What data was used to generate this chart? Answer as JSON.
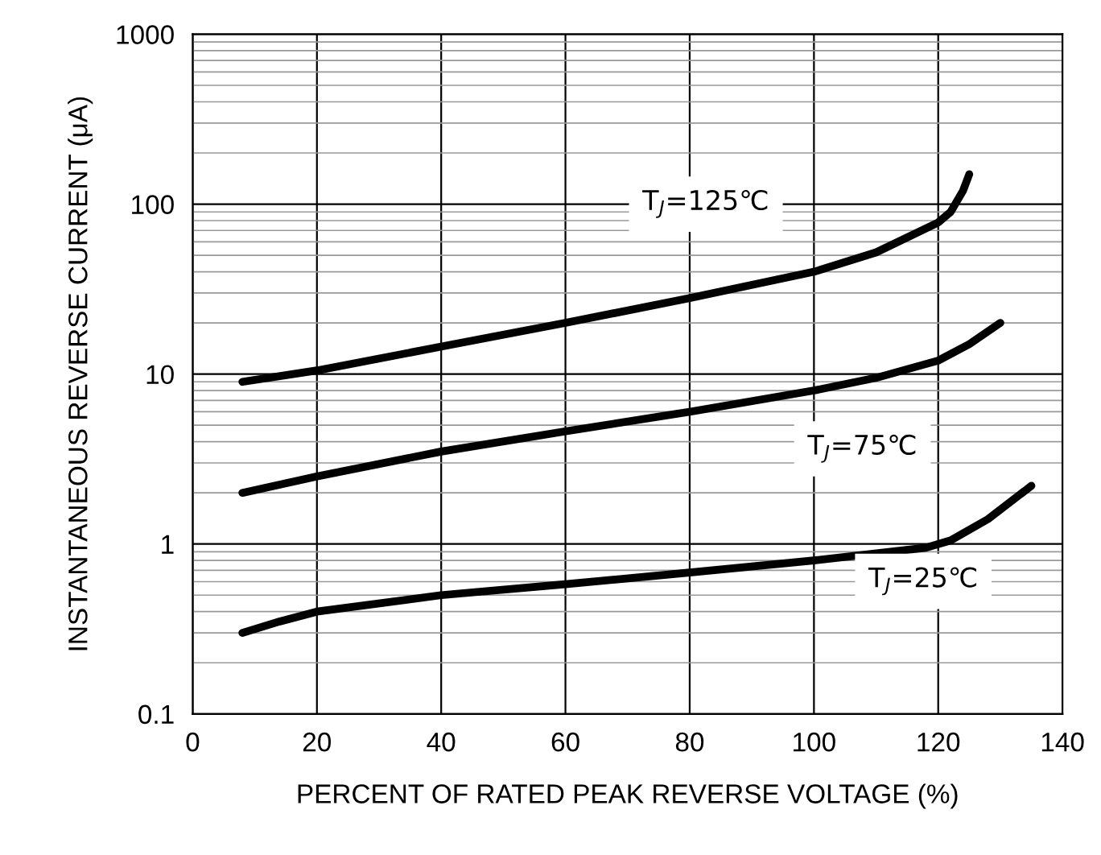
{
  "chart_data": {
    "type": "line",
    "xlabel": "PERCENT OF RATED PEAK REVERSE VOLTAGE (%)",
    "ylabel": "INSTANTANEOUS REVERSE CURRENT (μA)",
    "log": "y",
    "grid": true,
    "marker": "none",
    "line_style": "solid",
    "xlim": [
      0,
      140
    ],
    "xticks": [
      0,
      20,
      40,
      60,
      80,
      100,
      120,
      140
    ],
    "ylim": [
      0.1,
      1000
    ],
    "yticks": [
      0.1,
      1,
      10,
      100,
      1000
    ],
    "series": [
      {
        "name": "T$_{J}$=125℃",
        "color": "#000000",
        "x": [
          8,
          20,
          40,
          60,
          80,
          100,
          110,
          120,
          122,
          124,
          125
        ],
        "values": [
          9,
          10.5,
          14.5,
          20,
          28,
          40,
          52,
          78,
          90,
          120,
          150
        ]
      },
      {
        "name": "T$_{J}$=75℃",
        "color": "#000000",
        "x": [
          8,
          20,
          40,
          60,
          80,
          100,
          110,
          120,
          125,
          130
        ],
        "values": [
          2,
          2.5,
          3.5,
          4.6,
          6,
          8,
          9.5,
          12,
          15,
          20
        ]
      },
      {
        "name": "T$_{J}$=25℃",
        "color": "#000000",
        "x": [
          8,
          14,
          20,
          40,
          60,
          80,
          100,
          118,
          122,
          128,
          135
        ],
        "values": [
          0.3,
          0.35,
          0.4,
          0.5,
          0.58,
          0.68,
          0.8,
          0.95,
          1.05,
          1.4,
          2.2
        ]
      }
    ]
  }
}
